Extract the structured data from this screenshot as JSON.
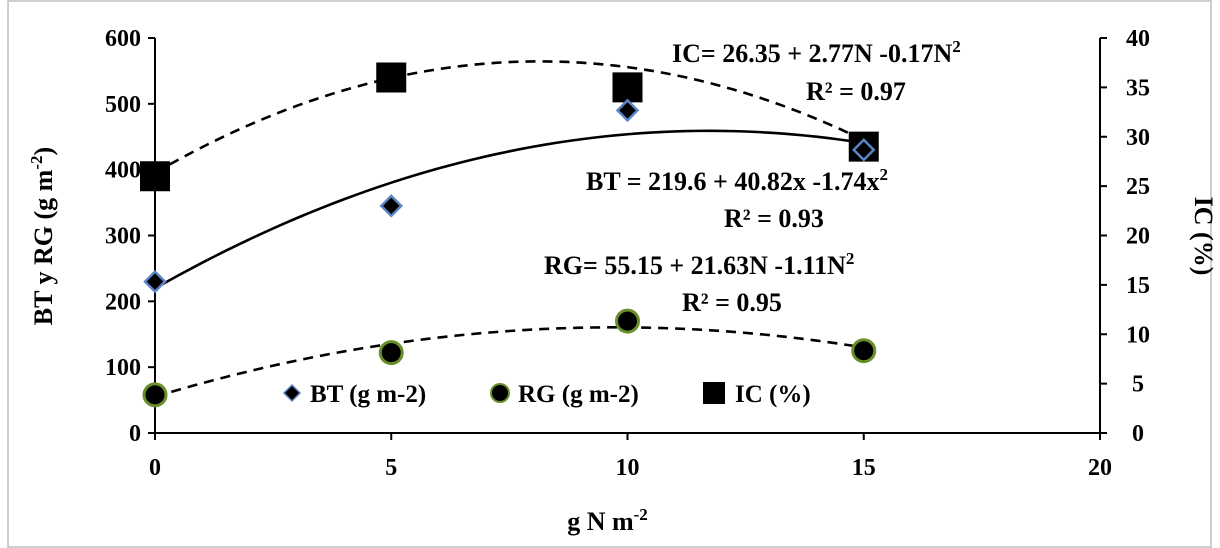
{
  "chart_data": {
    "type": "scatter",
    "x_axis": {
      "label": "g N m",
      "label_sup": "-2",
      "range": [
        0,
        20
      ],
      "ticks": [
        0,
        5,
        10,
        15,
        20
      ]
    },
    "y_left": {
      "label": "BT y RG (g m",
      "label_sup": "-2",
      "label_end": ")",
      "range": [
        0,
        600
      ],
      "ticks": [
        0,
        100,
        200,
        300,
        400,
        500,
        600
      ]
    },
    "y_right": {
      "label": "IC (%)",
      "range": [
        0,
        40
      ],
      "ticks": [
        0,
        5,
        10,
        15,
        20,
        25,
        30,
        35,
        40
      ]
    },
    "series": [
      {
        "name": "BT (g m-2)",
        "axis": "left",
        "marker": "diamond",
        "trend": "solid",
        "x": [
          0,
          5,
          10,
          15
        ],
        "y": [
          230,
          345,
          490,
          430
        ],
        "fit": [
          219.6,
          40.82,
          -1.74
        ]
      },
      {
        "name": "RG (g m-2)",
        "axis": "left",
        "marker": "circle",
        "trend": "dashed",
        "x": [
          0,
          5,
          10,
          15
        ],
        "y": [
          58,
          122,
          170,
          125
        ],
        "fit": [
          55.15,
          21.63,
          -1.11
        ]
      },
      {
        "name": "IC (%)",
        "axis": "right",
        "marker": "square",
        "trend": "dashed",
        "x": [
          0,
          5,
          10,
          15
        ],
        "y": [
          26,
          36,
          35,
          29
        ],
        "fit": [
          26.35,
          2.77,
          -0.17
        ]
      }
    ],
    "annotations": {
      "ic_eq": {
        "main": "IC= 26.35   + 2.77N -0.17N",
        "sup": "2"
      },
      "ic_r2": "R² = 0.97",
      "bt_eq": {
        "main": "BT =  219.6  + 40.82x -1.74x",
        "sup": "2"
      },
      "bt_r2": "R² = 0.93",
      "rg_eq": {
        "main": "RG=  55.15 + 21.63N  -1.11N",
        "sup": "2"
      },
      "rg_r2": "R² = 0.95"
    },
    "legend_position": "bottom-left inside plot",
    "grid": false,
    "colors": {
      "marker_fill": "#000000",
      "diamond_stroke": "#5b86c6",
      "circle_stroke": "#6a8f2a",
      "frame": "#bfbfbf"
    }
  }
}
